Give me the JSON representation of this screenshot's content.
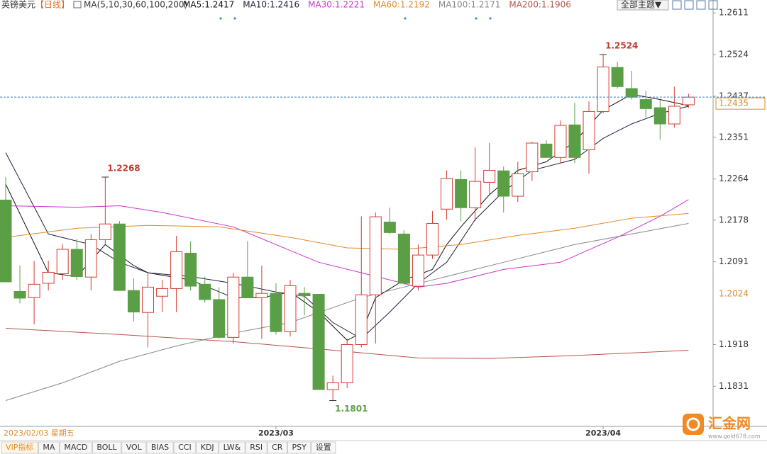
{
  "chart_data": {
    "type": "candlestick",
    "title": "英镑美元",
    "period": "【日线】",
    "ma_label": "MA(5,10,30,60,100,200)",
    "theme_button": "全部主题▼",
    "date_label": "2023/02/03 星期五",
    "categories": [
      null,
      null,
      null,
      null,
      null,
      null,
      null,
      null,
      null,
      null,
      null,
      null,
      null,
      null,
      null,
      null,
      null,
      null,
      null,
      "2023/03",
      null,
      null,
      null,
      null,
      null,
      null,
      null,
      null,
      null,
      null,
      null,
      null,
      null,
      null,
      null,
      null,
      null,
      null,
      null,
      null,
      null,
      null,
      "2023/04",
      null,
      null,
      null,
      null,
      null,
      null
    ],
    "up_color": "#d43c33",
    "down_color": "#5a9f46",
    "ohlc": {
      "open": [
        1.222,
        1.2029,
        1.2016,
        1.2046,
        1.2066,
        1.2117,
        1.2059,
        1.2137,
        1.217,
        1.2031,
        1.1985,
        1.2019,
        1.2035,
        1.2109,
        1.2044,
        1.2012,
        1.1933,
        1.2059,
        1.2016,
        1.2025,
        1.1945,
        1.2025,
        1.2023,
        1.1824,
        1.1838,
        1.1918,
        1.2022,
        1.2174,
        1.2149,
        1.204,
        1.2105,
        1.2201,
        1.2263,
        1.2204,
        1.2257,
        1.2281,
        1.2228,
        1.2279,
        1.2337,
        1.2309,
        1.2377,
        1.2325,
        1.2405,
        1.2497,
        1.2453,
        1.243,
        1.2413,
        1.2379,
        1.2419
      ],
      "high": [
        1.2268,
        1.2083,
        1.2093,
        1.2093,
        1.2127,
        1.2139,
        1.2149,
        1.2268,
        1.2176,
        1.2056,
        1.2068,
        1.2053,
        1.2145,
        1.2134,
        1.206,
        1.2038,
        1.2068,
        1.2134,
        1.2083,
        1.2046,
        1.2053,
        1.2038,
        1.2023,
        1.1853,
        1.193,
        1.2186,
        1.2194,
        1.2204,
        1.2157,
        1.2127,
        1.2197,
        1.2282,
        1.2282,
        1.233,
        1.2339,
        1.229,
        1.23,
        1.2342,
        1.2345,
        1.2386,
        1.2423,
        1.2426,
        1.2524,
        1.2509,
        1.249,
        1.2448,
        1.243,
        1.2457,
        1.2442
      ],
      "low": [
        1.2049,
        1.2004,
        1.196,
        1.2031,
        1.2053,
        1.2053,
        1.2031,
        1.2127,
        1.2031,
        1.1967,
        1.1912,
        1.1986,
        1.1986,
        1.2031,
        1.2006,
        1.193,
        1.192,
        1.2016,
        1.193,
        1.1939,
        1.1935,
        1.1979,
        1.1824,
        1.1801,
        1.1827,
        1.1912,
        1.192,
        1.2149,
        1.2043,
        1.2031,
        1.2097,
        1.2179,
        1.2176,
        1.2176,
        1.2231,
        1.2194,
        1.2216,
        1.226,
        1.2309,
        1.2297,
        1.2297,
        1.2275,
        1.2401,
        1.2453,
        1.243,
        1.2393,
        1.2346,
        1.2371,
        1.2413
      ],
      "close": [
        1.2049,
        1.2015,
        1.2044,
        1.2069,
        1.2117,
        1.206,
        1.2137,
        1.217,
        1.2031,
        1.1986,
        1.2038,
        1.2035,
        1.2112,
        1.204,
        1.2012,
        1.1933,
        1.2059,
        1.2016,
        1.2025,
        1.1945,
        1.2041,
        1.202,
        1.1824,
        1.1838,
        1.1918,
        1.2022,
        1.2185,
        1.2152,
        1.2046,
        1.2105,
        1.2171,
        1.2265,
        1.2204,
        1.2259,
        1.2282,
        1.2228,
        1.2275,
        1.2339,
        1.2309,
        1.2376,
        1.2309,
        1.2405,
        1.2498,
        1.2457,
        1.2435,
        1.2411,
        1.2379,
        1.2416,
        1.2435
      ]
    },
    "series": [
      {
        "name": "MA5",
        "legend": "MA5:1.2417",
        "color": "#111111",
        "x": [
          0,
          3,
          5,
          7,
          9,
          10,
          13,
          16,
          18,
          20,
          22,
          24,
          25,
          26,
          28,
          30,
          31,
          32,
          34,
          36,
          38,
          40,
          42,
          44,
          46,
          48
        ],
        "values": [
          1.2253,
          1.2068,
          1.206,
          1.2127,
          1.2083,
          1.2068,
          1.2053,
          1.2016,
          1.2016,
          1.2028,
          1.1986,
          1.1927,
          1.1942,
          1.2016,
          1.2053,
          1.2075,
          1.2127,
          1.2164,
          1.2231,
          1.2282,
          1.23,
          1.2342,
          1.2408,
          1.2441,
          1.243,
          1.2417
        ]
      },
      {
        "name": "MA10",
        "legend": "MA10:1.2416",
        "color": "#222244",
        "x": [
          0,
          3,
          6,
          8,
          10,
          13,
          16,
          19,
          21,
          23,
          25,
          27,
          29,
          31,
          33,
          35,
          37,
          40,
          42,
          44,
          46,
          48
        ],
        "values": [
          1.2319,
          1.2149,
          1.2127,
          1.209,
          1.2068,
          1.206,
          1.2046,
          1.2028,
          1.2019,
          1.1964,
          1.193,
          1.1986,
          1.2046,
          1.209,
          1.2179,
          1.2238,
          1.2282,
          1.2305,
          1.2349,
          1.2379,
          1.2401,
          1.2416
        ]
      },
      {
        "name": "MA30",
        "legend": "MA30:1.2221",
        "color": "#cc33cc",
        "x": [
          0,
          5,
          8,
          11,
          16,
          19,
          22,
          25,
          29,
          31,
          35,
          39,
          43,
          46,
          48
        ],
        "values": [
          1.2208,
          1.2205,
          1.2208,
          1.2194,
          1.2164,
          1.2127,
          1.209,
          1.2068,
          1.2038,
          1.2046,
          1.2075,
          1.209,
          1.2142,
          1.2186,
          1.2221
        ]
      },
      {
        "name": "MA60",
        "legend": "MA60:1.2192",
        "color": "#e08a2a",
        "x": [
          0,
          5,
          10,
          15,
          20,
          24,
          28,
          32,
          36,
          40,
          44,
          48
        ],
        "values": [
          1.2142,
          1.2161,
          1.2167,
          1.2164,
          1.2142,
          1.212,
          1.2117,
          1.2127,
          1.2146,
          1.2161,
          1.2182,
          1.2192
        ]
      },
      {
        "name": "MA100",
        "legend": "MA100:1.2171",
        "color": "#888888",
        "x": [
          0,
          4,
          8,
          12,
          16,
          20,
          25,
          30,
          35,
          40,
          44,
          48
        ],
        "values": [
          1.1801,
          1.1838,
          1.1883,
          1.1915,
          1.1942,
          1.1964,
          1.2016,
          1.2053,
          1.209,
          1.2127,
          1.2149,
          1.2171
        ]
      },
      {
        "name": "MA200",
        "legend": "MA200:1.1906",
        "color": "#b5534a",
        "x": [
          0,
          8,
          16,
          22,
          29,
          34,
          40,
          48
        ],
        "values": [
          1.1952,
          1.1939,
          1.1924,
          1.1909,
          1.189,
          1.1889,
          1.1895,
          1.1906
        ]
      }
    ],
    "ylim": [
      1.175,
      1.2638
    ],
    "yticks": [
      1.2611,
      1.2524,
      1.2437,
      1.2351,
      1.2264,
      1.2178,
      1.2091,
      1.1918,
      1.1831
    ],
    "marker_price": 1.2024,
    "tabs": [
      "VIP指标",
      "MA",
      "MACD",
      "BOLL",
      "VOL",
      "BIAS",
      "CCI",
      "KDJ",
      "LW&",
      "RSI",
      "CR",
      "PSY",
      "设置"
    ],
    "logo": "汇金网",
    "logo_url": "www.gold678.com"
  }
}
